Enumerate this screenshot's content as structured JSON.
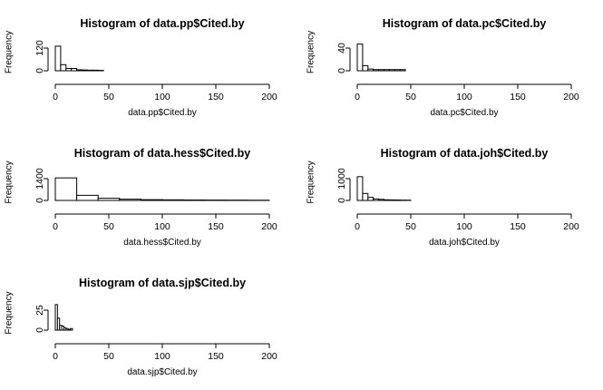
{
  "chart_data": [
    {
      "type": "bar",
      "title": "Histogram of data.pp$Cited.by",
      "xlabel": "data.pp$Cited.by",
      "ylabel": "Frequency",
      "xlim": [
        0,
        200
      ],
      "ylim": [
        0,
        120
      ],
      "x_ticks": [
        "0",
        "50",
        "100",
        "150",
        "200"
      ],
      "y_ticks": [
        "0",
        "120"
      ],
      "bins": [
        [
          0,
          5,
          130
        ],
        [
          5,
          10,
          32
        ],
        [
          10,
          15,
          12
        ],
        [
          15,
          20,
          12
        ],
        [
          20,
          25,
          5
        ],
        [
          25,
          30,
          4
        ],
        [
          30,
          35,
          3
        ],
        [
          35,
          40,
          3
        ],
        [
          40,
          45,
          2
        ]
      ]
    },
    {
      "type": "bar",
      "title": "Histogram of data.pc$Cited.by",
      "xlabel": "data.pc$Cited.by",
      "ylabel": "Frequency",
      "xlim": [
        0,
        200
      ],
      "ylim": [
        0,
        40
      ],
      "x_ticks": [
        "0",
        "50",
        "100",
        "150",
        "200"
      ],
      "y_ticks": [
        "0",
        "40"
      ],
      "bins": [
        [
          0,
          5,
          47
        ],
        [
          5,
          10,
          9
        ],
        [
          10,
          15,
          3
        ],
        [
          15,
          20,
          2
        ],
        [
          20,
          25,
          2
        ],
        [
          25,
          30,
          2
        ],
        [
          30,
          35,
          2
        ],
        [
          35,
          40,
          2
        ],
        [
          40,
          45,
          2
        ]
      ]
    },
    {
      "type": "bar",
      "title": "Histogram of data.hess$Cited.by",
      "xlabel": "data.hess$Cited.by",
      "ylabel": "Frequency",
      "xlim": [
        0,
        200
      ],
      "ylim": [
        0,
        1400
      ],
      "x_ticks": [
        "0",
        "50",
        "100",
        "150",
        "200"
      ],
      "y_ticks": [
        "0",
        "1400"
      ],
      "bins": [
        [
          0,
          20,
          1450
        ],
        [
          20,
          40,
          330
        ],
        [
          40,
          60,
          140
        ],
        [
          60,
          80,
          80
        ],
        [
          80,
          100,
          50
        ],
        [
          100,
          120,
          40
        ],
        [
          120,
          140,
          30
        ],
        [
          140,
          160,
          25
        ],
        [
          160,
          180,
          20
        ],
        [
          180,
          200,
          15
        ]
      ]
    },
    {
      "type": "bar",
      "title": "Histogram of data.joh$Cited.by",
      "xlabel": "data.joh$Cited.by",
      "ylabel": "Frequency",
      "xlim": [
        0,
        200
      ],
      "ylim": [
        0,
        1000
      ],
      "x_ticks": [
        "0",
        "50",
        "100",
        "150",
        "200"
      ],
      "y_ticks": [
        "0",
        "1000"
      ],
      "bins": [
        [
          0,
          5,
          1090
        ],
        [
          5,
          10,
          320
        ],
        [
          10,
          15,
          140
        ],
        [
          15,
          20,
          70
        ],
        [
          20,
          25,
          50
        ],
        [
          25,
          30,
          30
        ],
        [
          30,
          35,
          25
        ],
        [
          35,
          40,
          20
        ],
        [
          40,
          45,
          15
        ],
        [
          45,
          50,
          12
        ]
      ]
    },
    {
      "type": "bar",
      "title": "Histogram of data.sjp$Cited.by",
      "xlabel": "data.sjp$Cited.by",
      "ylabel": "Frequency",
      "xlim": [
        0,
        200
      ],
      "ylim": [
        0,
        25
      ],
      "x_ticks": [
        "0",
        "50",
        "100",
        "150",
        "200"
      ],
      "y_ticks": [
        "0",
        "25"
      ],
      "bins": [
        [
          0,
          2,
          32
        ],
        [
          2,
          4,
          15
        ],
        [
          4,
          6,
          6
        ],
        [
          6,
          8,
          5
        ],
        [
          8,
          10,
          3
        ],
        [
          10,
          12,
          2
        ],
        [
          12,
          14,
          1
        ],
        [
          14,
          16,
          2
        ]
      ]
    }
  ]
}
